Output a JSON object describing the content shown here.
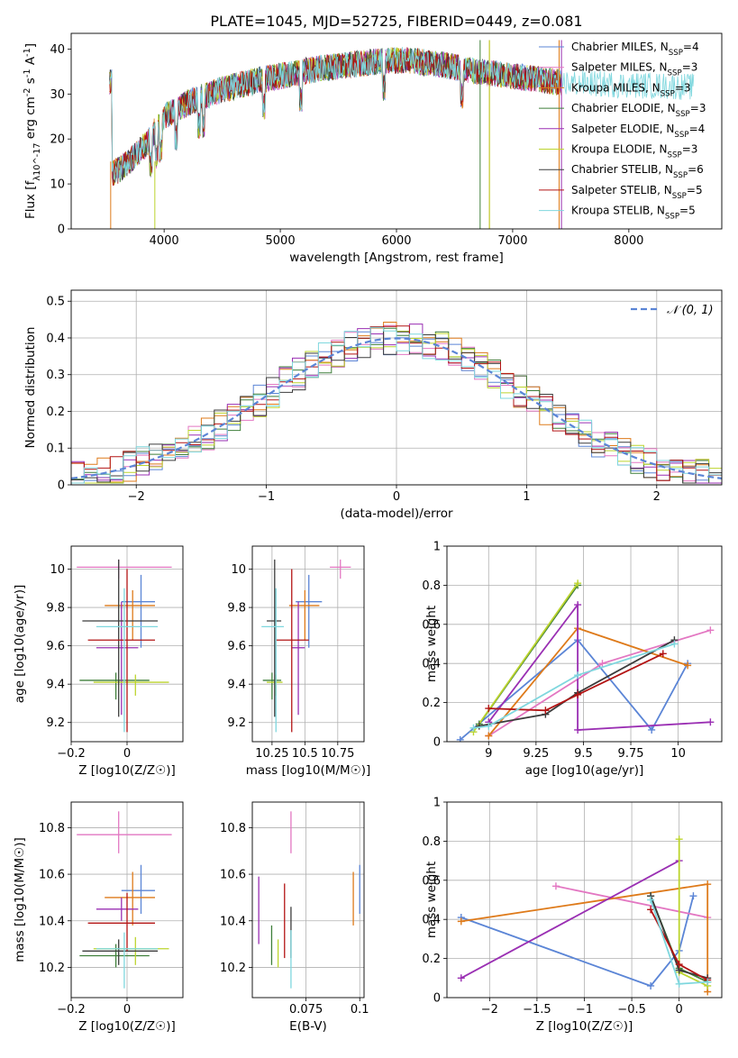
{
  "title": "PLATE=1045, MJD=52725, FIBERID=0449, z=0.081",
  "colors": {
    "s1": "#5b85d6",
    "s2": "#e377c2",
    "s3": "#de7a1a",
    "s4": "#3f7f3a",
    "s5": "#9a2fb3",
    "s6": "#bcd42d",
    "s7": "#3c3c3c",
    "s8": "#b31414",
    "s9": "#7fd7de",
    "grid": "#b0b0b0",
    "normal": "#5b85d6"
  },
  "chart_data": [
    {
      "id": "spectrum",
      "type": "line",
      "xlabel": "wavelength [Angstrom, rest frame]",
      "ylabel": "Flux [f_λ10^-17 erg cm^-2 s^-1 A^-1]",
      "xlim": [
        3200,
        8800
      ],
      "ylim": [
        0,
        43.5
      ],
      "xticks": [
        4000,
        5000,
        6000,
        7000,
        8000
      ],
      "yticks": [
        0,
        10,
        20,
        30,
        40
      ],
      "grid": false,
      "legend_position": "top-right",
      "continuum": [
        [
          3550,
          12
        ],
        [
          3700,
          15
        ],
        [
          3850,
          19
        ],
        [
          4000,
          25
        ],
        [
          4200,
          28
        ],
        [
          4500,
          31
        ],
        [
          4800,
          33
        ],
        [
          5000,
          34
        ],
        [
          5300,
          35.5
        ],
        [
          5600,
          36.5
        ],
        [
          5900,
          37.5
        ],
        [
          6100,
          37.5
        ],
        [
          6400,
          36.5
        ],
        [
          6700,
          35
        ],
        [
          7000,
          34
        ],
        [
          7300,
          33
        ],
        [
          7420,
          32.5
        ]
      ],
      "legend": [
        {
          "label": "Chabrier MILES, N_SSP=4",
          "color": "#5b85d6"
        },
        {
          "label": "Salpeter MILES, N_SSP=3",
          "color": "#e377c2"
        },
        {
          "label": "Kroupa MILES, N_SSP=3",
          "color": "#de7a1a"
        },
        {
          "label": "Chabrier ELODIE, N_SSP=3",
          "color": "#3f7f3a"
        },
        {
          "label": "Salpeter ELODIE, N_SSP=4",
          "color": "#9a2fb3"
        },
        {
          "label": "Kroupa ELODIE, N_SSP=3",
          "color": "#bcd42d"
        },
        {
          "label": "Chabrier STELIB, N_SSP=6",
          "color": "#3c3c3c"
        },
        {
          "label": "Salpeter STELIB, N_SSP=5",
          "color": "#b31414"
        },
        {
          "label": "Kroupa STELIB, N_SSP=5",
          "color": "#7fd7de"
        }
      ]
    },
    {
      "id": "residuals",
      "type": "line",
      "xlabel": "(data-model)/error",
      "ylabel": "Normed distribution",
      "xlim": [
        -2.5,
        2.5
      ],
      "ylim": [
        0,
        0.53
      ],
      "xticks": [
        -2,
        -1,
        0,
        1,
        2
      ],
      "yticks": [
        0,
        0.1,
        0.2,
        0.3,
        0.4,
        0.5
      ],
      "grid": true,
      "legend": [
        {
          "label": "N(0,1)",
          "color": "#5b85d6"
        }
      ],
      "legend_position": "top-right",
      "histogram_note": "step histograms of residuals for 9 fits, roughly matching N(0,1)"
    },
    {
      "id": "age_vs_Z",
      "type": "scatter",
      "xlabel": "Z [log10(Z/Z☉)]",
      "ylabel": "age  [log10(age/yr)]",
      "xlim": [
        -0.2,
        0.2
      ],
      "ylim": [
        9.1,
        10.12
      ],
      "xticks": [
        -0.2,
        0
      ],
      "yticks": [
        9.2,
        9.4,
        9.6,
        9.8,
        10.0
      ],
      "grid": true,
      "points": [
        {
          "x": 0.05,
          "y": 9.83,
          "xerr": [
            0.07,
            0.05
          ],
          "yerr": [
            0.24,
            0.14
          ],
          "color": "#5b85d6"
        },
        {
          "x": -0.03,
          "y": 10.01,
          "xerr": [
            0.15,
            0.19
          ],
          "yerr": [
            0.06,
            0.04
          ],
          "color": "#e377c2"
        },
        {
          "x": 0.02,
          "y": 9.81,
          "xerr": [
            0.1,
            0.08
          ],
          "yerr": [
            0.18,
            0.08
          ],
          "color": "#de7a1a"
        },
        {
          "x": -0.04,
          "y": 9.42,
          "xerr": [
            0.13,
            0.12
          ],
          "yerr": [
            0.1,
            0.04
          ],
          "color": "#3f7f3a"
        },
        {
          "x": -0.02,
          "y": 9.59,
          "xerr": [
            0.09,
            0.06
          ],
          "yerr": [
            0.35,
            0.24
          ],
          "color": "#9a2fb3"
        },
        {
          "x": 0.03,
          "y": 9.41,
          "xerr": [
            0.15,
            0.12
          ],
          "yerr": [
            0.07,
            0.04
          ],
          "color": "#bcd42d"
        },
        {
          "x": -0.03,
          "y": 9.73,
          "xerr": [
            0.13,
            0.14
          ],
          "yerr": [
            0.5,
            0.32
          ],
          "color": "#3c3c3c"
        },
        {
          "x": 0.0,
          "y": 9.63,
          "xerr": [
            0.14,
            0.1
          ],
          "yerr": [
            0.48,
            0.37
          ],
          "color": "#b31414"
        },
        {
          "x": -0.01,
          "y": 9.7,
          "xerr": [
            0.1,
            0.12
          ],
          "yerr": [
            0.55,
            0.2
          ],
          "color": "#7fd7de"
        }
      ]
    },
    {
      "id": "age_vs_mass",
      "type": "scatter",
      "xlabel": "mass [log10(M/M☉)]",
      "ylabel": "",
      "xlim": [
        10.1,
        10.95
      ],
      "ylim": [
        9.1,
        10.12
      ],
      "xticks": [
        10.25,
        10.5,
        10.75
      ],
      "yticks": [
        9.2,
        9.4,
        9.6,
        9.8,
        10.0
      ],
      "grid": true,
      "points": [
        {
          "x": 10.53,
          "y": 9.83,
          "xerr": [
            0.1,
            0.1
          ],
          "yerr": [
            0.24,
            0.14
          ],
          "color": "#5b85d6"
        },
        {
          "x": 10.77,
          "y": 10.01,
          "xerr": [
            0.08,
            0.08
          ],
          "yerr": [
            0.06,
            0.04
          ],
          "color": "#e377c2"
        },
        {
          "x": 10.5,
          "y": 9.81,
          "xerr": [
            0.12,
            0.11
          ],
          "yerr": [
            0.18,
            0.08
          ],
          "color": "#de7a1a"
        },
        {
          "x": 10.25,
          "y": 9.42,
          "xerr": [
            0.07,
            0.07
          ],
          "yerr": [
            0.1,
            0.04
          ],
          "color": "#3f7f3a"
        },
        {
          "x": 10.45,
          "y": 9.59,
          "xerr": [
            0.05,
            0.05
          ],
          "yerr": [
            0.35,
            0.24
          ],
          "color": "#9a2fb3"
        },
        {
          "x": 10.28,
          "y": 9.41,
          "xerr": [
            0.07,
            0.05
          ],
          "yerr": [
            0.07,
            0.04
          ],
          "color": "#bcd42d"
        },
        {
          "x": 10.27,
          "y": 9.73,
          "xerr": [
            0.06,
            0.05
          ],
          "yerr": [
            0.5,
            0.32
          ],
          "color": "#3c3c3c"
        },
        {
          "x": 10.4,
          "y": 9.63,
          "xerr": [
            0.12,
            0.13
          ],
          "yerr": [
            0.48,
            0.37
          ],
          "color": "#b31414"
        },
        {
          "x": 10.28,
          "y": 9.7,
          "xerr": [
            0.11,
            0.06
          ],
          "yerr": [
            0.55,
            0.2
          ],
          "color": "#7fd7de"
        }
      ]
    },
    {
      "id": "massweight_vs_age",
      "type": "line",
      "xlabel": "age  [log10(age/yr)]",
      "ylabel": "mass weight",
      "xlim": [
        8.78,
        10.23
      ],
      "ylim": [
        0,
        1.0
      ],
      "xticks": [
        9.0,
        9.25,
        9.5,
        9.75,
        10.0
      ],
      "yticks": [
        0,
        0.2,
        0.4,
        0.6,
        0.8,
        1.0
      ],
      "grid": true,
      "series": [
        {
          "color": "#5b85d6",
          "points": [
            [
              8.85,
              0.01
            ],
            [
              9.47,
              0.52
            ],
            [
              9.86,
              0.06
            ],
            [
              10.05,
              0.4
            ]
          ]
        },
        {
          "color": "#e377c2",
          "points": [
            [
              9.0,
              0.03
            ],
            [
              9.6,
              0.4
            ],
            [
              10.17,
              0.57
            ]
          ]
        },
        {
          "color": "#de7a1a",
          "points": [
            [
              9.0,
              0.03
            ],
            [
              9.47,
              0.58
            ],
            [
              10.05,
              0.39
            ]
          ]
        },
        {
          "color": "#3f7f3a",
          "points": [
            [
              8.95,
              0.09
            ],
            [
              9.47,
              0.8
            ]
          ]
        },
        {
          "color": "#9a2fb3",
          "points": [
            [
              9.0,
              0.1
            ],
            [
              9.47,
              0.7
            ],
            [
              9.47,
              0.06
            ],
            [
              10.17,
              0.1
            ]
          ]
        },
        {
          "color": "#bcd42d",
          "points": [
            [
              8.92,
              0.05
            ],
            [
              9.47,
              0.81
            ]
          ]
        },
        {
          "color": "#3c3c3c",
          "points": [
            [
              8.95,
              0.08
            ],
            [
              9.3,
              0.14
            ],
            [
              9.47,
              0.25
            ],
            [
              9.98,
              0.52
            ]
          ]
        },
        {
          "color": "#b31414",
          "points": [
            [
              9.0,
              0.17
            ],
            [
              9.3,
              0.16
            ],
            [
              9.47,
              0.24
            ],
            [
              9.92,
              0.45
            ]
          ]
        },
        {
          "color": "#7fd7de",
          "points": [
            [
              8.92,
              0.07
            ],
            [
              9.0,
              0.08
            ],
            [
              9.47,
              0.34
            ],
            [
              9.98,
              0.5
            ]
          ]
        }
      ]
    },
    {
      "id": "mass_vs_Z",
      "type": "scatter",
      "xlabel": "Z [log10(Z/Z☉)]",
      "ylabel": "mass [log10(M/M☉)]",
      "xlim": [
        -0.2,
        0.2
      ],
      "ylim": [
        10.07,
        10.91
      ],
      "xticks": [
        -0.2,
        0.0
      ],
      "yticks": [
        10.2,
        10.4,
        10.6,
        10.8
      ],
      "grid": true,
      "points": [
        {
          "x": 0.05,
          "y": 10.53,
          "xerr": [
            0.07,
            0.05
          ],
          "yerr": [
            0.1,
            0.11
          ],
          "color": "#5b85d6"
        },
        {
          "x": -0.03,
          "y": 10.77,
          "xerr": [
            0.15,
            0.19
          ],
          "yerr": [
            0.08,
            0.1
          ],
          "color": "#e377c2"
        },
        {
          "x": 0.02,
          "y": 10.5,
          "xerr": [
            0.1,
            0.08
          ],
          "yerr": [
            0.12,
            0.11
          ],
          "color": "#de7a1a"
        },
        {
          "x": -0.04,
          "y": 10.25,
          "xerr": [
            0.13,
            0.12
          ],
          "yerr": [
            0.05,
            0.05
          ],
          "color": "#3f7f3a"
        },
        {
          "x": -0.02,
          "y": 10.45,
          "xerr": [
            0.09,
            0.06
          ],
          "yerr": [
            0.05,
            0.05
          ],
          "color": "#9a2fb3"
        },
        {
          "x": 0.03,
          "y": 10.28,
          "xerr": [
            0.15,
            0.12
          ],
          "yerr": [
            0.07,
            0.05
          ],
          "color": "#bcd42d"
        },
        {
          "x": -0.03,
          "y": 10.27,
          "xerr": [
            0.13,
            0.14
          ],
          "yerr": [
            0.06,
            0.05
          ],
          "color": "#3c3c3c"
        },
        {
          "x": 0.0,
          "y": 10.39,
          "xerr": [
            0.14,
            0.1
          ],
          "yerr": [
            0.12,
            0.13
          ],
          "color": "#b31414"
        },
        {
          "x": -0.01,
          "y": 10.28,
          "xerr": [
            0.1,
            0.12
          ],
          "yerr": [
            0.17,
            0.07
          ],
          "color": "#7fd7de"
        }
      ]
    },
    {
      "id": "mass_vs_EBV",
      "type": "scatter",
      "xlabel": "E(B-V)",
      "ylabel": "",
      "xlim": [
        0.05,
        0.102
      ],
      "ylim": [
        10.07,
        10.91
      ],
      "xticks": [
        0.075,
        0.1
      ],
      "yticks": [
        10.2,
        10.4,
        10.6,
        10.8
      ],
      "grid": true,
      "points": [
        {
          "x": 0.1,
          "y": 10.53,
          "yerr": [
            0.1,
            0.11
          ],
          "color": "#5b85d6"
        },
        {
          "x": 0.068,
          "y": 10.77,
          "yerr": [
            0.08,
            0.1
          ],
          "color": "#e377c2"
        },
        {
          "x": 0.097,
          "y": 10.5,
          "yerr": [
            0.12,
            0.11
          ],
          "color": "#de7a1a"
        },
        {
          "x": 0.059,
          "y": 10.29,
          "yerr": [
            0.08,
            0.09
          ],
          "color": "#3f7f3a"
        },
        {
          "x": 0.053,
          "y": 10.45,
          "yerr": [
            0.15,
            0.14
          ],
          "color": "#9a2fb3"
        },
        {
          "x": 0.062,
          "y": 10.25,
          "yerr": [
            0.05,
            0.07
          ],
          "color": "#bcd42d"
        },
        {
          "x": 0.068,
          "y": 10.36,
          "yerr": [
            0.12,
            0.1
          ],
          "color": "#3c3c3c"
        },
        {
          "x": 0.065,
          "y": 10.39,
          "yerr": [
            0.15,
            0.17
          ],
          "color": "#b31414"
        },
        {
          "x": 0.068,
          "y": 10.24,
          "yerr": [
            0.13,
            0.12
          ],
          "color": "#7fd7de"
        }
      ]
    },
    {
      "id": "massweight_vs_Z",
      "type": "line",
      "xlabel": "Z [log10(Z/Z☉)]",
      "ylabel": "mass weight",
      "xlim": [
        -2.45,
        0.45
      ],
      "ylim": [
        0,
        1.0
      ],
      "xticks": [
        -2.0,
        -1.5,
        -1.0,
        -0.5,
        0.0
      ],
      "yticks": [
        0,
        0.2,
        0.4,
        0.6,
        0.8,
        1.0
      ],
      "grid": true,
      "series": [
        {
          "color": "#5b85d6",
          "points": [
            [
              -2.3,
              0.41
            ],
            [
              -0.3,
              0.06
            ],
            [
              0.0,
              0.24
            ],
            [
              0.15,
              0.52
            ]
          ]
        },
        {
          "color": "#e377c2",
          "points": [
            [
              -1.3,
              0.57
            ],
            [
              0.3,
              0.41
            ]
          ]
        },
        {
          "color": "#de7a1a",
          "points": [
            [
              -2.3,
              0.39
            ],
            [
              0.3,
              0.58
            ],
            [
              0.3,
              0.03
            ]
          ]
        },
        {
          "color": "#3f7f3a",
          "points": [
            [
              -0.3,
              0.52
            ],
            [
              0.0,
              0.15
            ],
            [
              0.3,
              0.08
            ]
          ]
        },
        {
          "color": "#9a2fb3",
          "points": [
            [
              -2.3,
              0.1
            ],
            [
              0.0,
              0.7
            ]
          ]
        },
        {
          "color": "#bcd42d",
          "points": [
            [
              0.0,
              0.81
            ],
            [
              0.0,
              0.13
            ],
            [
              0.3,
              0.06
            ]
          ]
        },
        {
          "color": "#3c3c3c",
          "points": [
            [
              -0.3,
              0.52
            ],
            [
              0.0,
              0.14
            ],
            [
              0.3,
              0.1
            ]
          ]
        },
        {
          "color": "#b31414",
          "points": [
            [
              -0.3,
              0.45
            ],
            [
              0.0,
              0.17
            ],
            [
              0.3,
              0.09
            ]
          ]
        },
        {
          "color": "#7fd7de",
          "points": [
            [
              -0.3,
              0.5
            ],
            [
              0.0,
              0.07
            ],
            [
              0.3,
              0.08
            ]
          ]
        }
      ]
    }
  ]
}
